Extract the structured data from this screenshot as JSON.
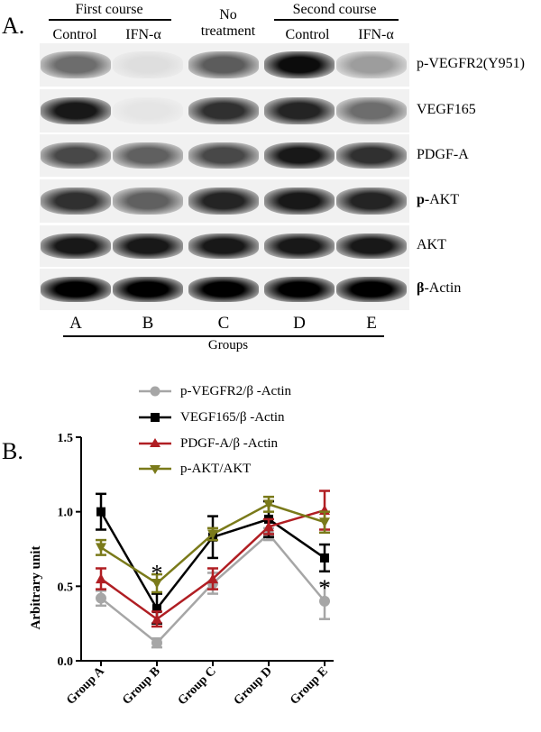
{
  "panel_a": {
    "label": "A.",
    "header": {
      "first_course": "First course",
      "no_treatment_line1": "No",
      "no_treatment_line2": "treatment",
      "second_course": "Second course",
      "control_1": "Control",
      "ifn_1": "IFN-α",
      "control_2": "Control",
      "ifn_2": "IFN-α"
    },
    "blots": [
      {
        "label": "p-VEGFR2(Y951)",
        "intensities": [
          0.55,
          0.08,
          0.62,
          0.95,
          0.35
        ]
      },
      {
        "label": "VEGF165",
        "intensities": [
          0.9,
          0.05,
          0.8,
          0.85,
          0.55
        ]
      },
      {
        "label": "PDGF-A",
        "intensities": [
          0.7,
          0.6,
          0.7,
          0.9,
          0.8
        ]
      },
      {
        "label_bold": "p-",
        "label_rest": "AKT",
        "intensities": [
          0.8,
          0.6,
          0.85,
          0.9,
          0.85
        ]
      },
      {
        "label": "AKT",
        "intensities": [
          0.9,
          0.9,
          0.9,
          0.9,
          0.9
        ]
      },
      {
        "label_bold": "β",
        "label_rest": "-Actin",
        "intensities": [
          1.0,
          1.0,
          1.0,
          1.0,
          1.0
        ]
      }
    ],
    "lanes": [
      "A",
      "B",
      "C",
      "D",
      "E"
    ],
    "groups_label": "Groups"
  },
  "panel_b": {
    "label": "B."
  },
  "chart_data": {
    "type": "line",
    "categories": [
      "Group A",
      "Group B",
      "Group C",
      "Group D",
      "Group E"
    ],
    "ylabel": "Arbitrary unit",
    "ylim": [
      0.0,
      1.5
    ],
    "yticks": [
      "0.0",
      "0.5",
      "1.0",
      "1.5"
    ],
    "series": [
      {
        "name": "p-VEGFR2/β -Actin",
        "color": "#a6a6a6",
        "marker": "circle",
        "values": [
          0.42,
          0.12,
          0.52,
          0.85,
          0.4
        ],
        "errors": [
          0.05,
          0.03,
          0.07,
          0.04,
          0.12
        ]
      },
      {
        "name": "VEGF165/β -Actin",
        "color": "#000000",
        "marker": "square",
        "values": [
          1.0,
          0.35,
          0.83,
          0.95,
          0.69
        ],
        "errors": [
          0.12,
          0.1,
          0.14,
          0.12,
          0.09
        ]
      },
      {
        "name": "PDGF-A/β -Actin",
        "color": "#b01e23",
        "marker": "triangle-up",
        "values": [
          0.55,
          0.28,
          0.55,
          0.9,
          1.01
        ],
        "errors": [
          0.07,
          0.05,
          0.07,
          0.05,
          0.13
        ]
      },
      {
        "name": "p-AKT/AKT",
        "color": "#7a7a1a",
        "marker": "triangle-down",
        "values": [
          0.76,
          0.52,
          0.85,
          1.05,
          0.93
        ],
        "errors": [
          0.05,
          0.06,
          0.04,
          0.05,
          0.07
        ]
      }
    ],
    "annotations": [
      {
        "text": "*",
        "category": "Group B",
        "y": 0.62
      },
      {
        "text": "*",
        "category": "Group E",
        "y": 0.52
      }
    ],
    "legend_position": "top"
  }
}
